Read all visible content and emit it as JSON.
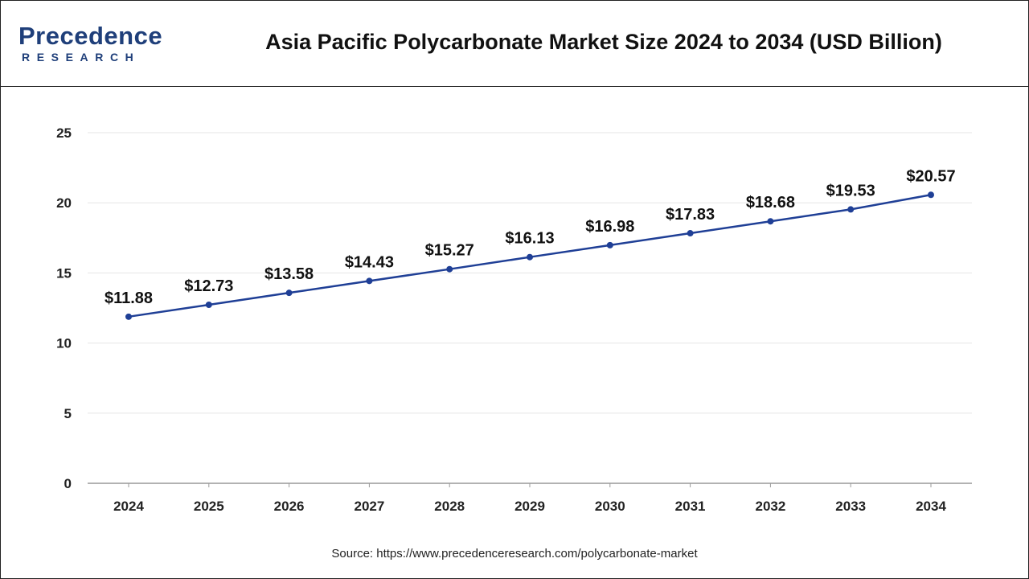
{
  "header": {
    "logo_main": "Precedence",
    "logo_sub": "RESEARCH",
    "title": "Asia Pacific Polycarbonate Market Size 2024 to 2034 (USD Billion)"
  },
  "source": "Source: https://www.precedenceresearch.com/polycarbonate-market",
  "colors": {
    "line": "#1f3f96",
    "marker": "#1f3f96",
    "brand": "#1f3f7a",
    "grid": "#e6e6e6",
    "axis": "#999999"
  },
  "chart_data": {
    "type": "line",
    "title": "Asia Pacific Polycarbonate Market Size 2024 to 2034 (USD Billion)",
    "xlabel": "",
    "ylabel": "",
    "categories": [
      "2024",
      "2025",
      "2026",
      "2027",
      "2028",
      "2029",
      "2030",
      "2031",
      "2032",
      "2033",
      "2034"
    ],
    "values": [
      11.88,
      12.73,
      13.58,
      14.43,
      15.27,
      16.13,
      16.98,
      17.83,
      18.68,
      19.53,
      20.57
    ],
    "data_labels": [
      "$11.88",
      "$12.73",
      "$13.58",
      "$14.43",
      "$15.27",
      "$16.13",
      "$16.98",
      "$17.83",
      "$18.68",
      "$19.53",
      "$20.57"
    ],
    "ylim": [
      0,
      25
    ],
    "yticks": [
      "0",
      "5",
      "10",
      "15",
      "20",
      "25"
    ],
    "grid": true,
    "legend": "none"
  }
}
